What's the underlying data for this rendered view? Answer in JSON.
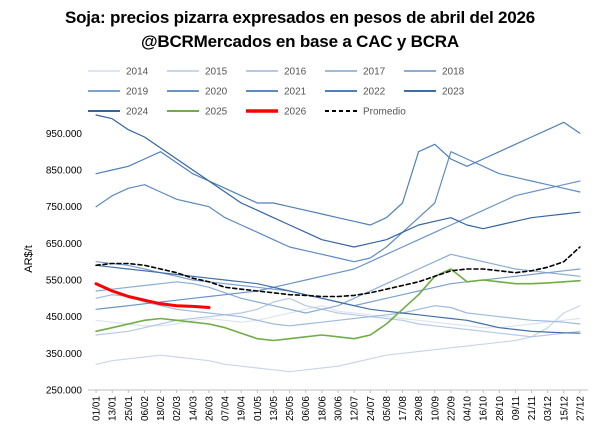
{
  "chart_data": {
    "type": "line",
    "title": "Soja: precios pizarra  expresados en pesos de abril del 2026",
    "subtitle": "@BCRMercados en base a CAC y BCRA",
    "ylabel": "AR$/t",
    "xlabel": "",
    "ylim": [
      250000,
      1000000
    ],
    "yticks": [
      "250.000",
      "350.000",
      "450.000",
      "550.000",
      "650.000",
      "750.000",
      "850.000",
      "950.000"
    ],
    "ytick_values": [
      250000,
      350000,
      450000,
      550000,
      650000,
      750000,
      850000,
      950000
    ],
    "x_ticks": [
      "01/01",
      "13/01",
      "25/01",
      "06/02",
      "18/02",
      "02/03",
      "14/03",
      "26/03",
      "07/04",
      "19/04",
      "01/05",
      "13/05",
      "25/05",
      "06/06",
      "18/06",
      "30/06",
      "12/07",
      "24/07",
      "05/08",
      "17/08",
      "29/08",
      "10/09",
      "22/09",
      "04/10",
      "16/10",
      "28/10",
      "09/11",
      "21/11",
      "03/12",
      "15/12",
      "27/12"
    ],
    "x": [
      "01/01",
      "13/01",
      "25/01",
      "06/02",
      "18/02",
      "02/03",
      "14/03",
      "26/03",
      "07/04",
      "19/04",
      "01/05",
      "13/05",
      "25/05",
      "06/06",
      "18/06",
      "30/06",
      "12/07",
      "24/07",
      "05/08",
      "17/08",
      "29/08",
      "10/09",
      "22/09",
      "04/10",
      "16/10",
      "28/10",
      "09/11",
      "21/11",
      "03/12",
      "15/12",
      "27/12"
    ],
    "grid": false,
    "legend_position": "top",
    "series": [
      {
        "name": "2014",
        "color": "#dce4f0",
        "width": 1.2,
        "values": [
          440000,
          435000,
          430000,
          425000,
          425000,
          430000,
          440000,
          445000,
          440000,
          435000,
          440000,
          450000,
          460000,
          470000,
          480000,
          465000,
          460000,
          455000,
          450000,
          445000,
          440000,
          435000,
          430000,
          425000,
          420000,
          420000,
          425000,
          430000,
          435000,
          440000,
          445000
        ]
      },
      {
        "name": "2015",
        "color": "#c9d7ea",
        "width": 1.2,
        "values": [
          320000,
          330000,
          335000,
          340000,
          345000,
          340000,
          335000,
          330000,
          320000,
          315000,
          310000,
          305000,
          300000,
          305000,
          310000,
          315000,
          325000,
          335000,
          345000,
          350000,
          355000,
          360000,
          365000,
          370000,
          375000,
          380000,
          385000,
          395000,
          420000,
          460000,
          480000
        ]
      },
      {
        "name": "2016",
        "color": "#b5c9e3",
        "width": 1.2,
        "values": [
          400000,
          405000,
          410000,
          420000,
          430000,
          440000,
          445000,
          450000,
          455000,
          460000,
          470000,
          490000,
          500000,
          480000,
          470000,
          460000,
          455000,
          450000,
          445000,
          440000,
          430000,
          425000,
          420000,
          415000,
          410000,
          405000,
          400000,
          395000,
          400000,
          405000,
          410000
        ]
      },
      {
        "name": "2017",
        "color": "#9fbadc",
        "width": 1.2,
        "values": [
          500000,
          510000,
          505000,
          490000,
          480000,
          470000,
          465000,
          460000,
          455000,
          450000,
          440000,
          430000,
          425000,
          430000,
          435000,
          440000,
          445000,
          450000,
          455000,
          460000,
          470000,
          480000,
          475000,
          460000,
          455000,
          450000,
          445000,
          440000,
          438000,
          435000,
          430000
        ]
      },
      {
        "name": "2018",
        "color": "#8aacd5",
        "width": 1.2,
        "values": [
          520000,
          525000,
          530000,
          535000,
          540000,
          545000,
          540000,
          530000,
          515000,
          500000,
          490000,
          480000,
          470000,
          460000,
          470000,
          480000,
          500000,
          520000,
          540000,
          560000,
          580000,
          600000,
          620000,
          610000,
          600000,
          590000,
          580000,
          575000,
          570000,
          565000,
          560000
        ]
      },
      {
        "name": "2019",
        "color": "#7da1ce",
        "width": 1.2,
        "values": [
          600000,
          595000,
          590000,
          580000,
          570000,
          560000,
          550000,
          545000,
          540000,
          535000,
          530000,
          525000,
          520000,
          510000,
          500000,
          490000,
          480000,
          490000,
          500000,
          510000,
          520000,
          530000,
          540000,
          545000,
          550000,
          555000,
          560000,
          565000,
          570000,
          575000,
          580000
        ]
      },
      {
        "name": "2020",
        "color": "#6b94c6",
        "width": 1.2,
        "values": [
          470000,
          475000,
          480000,
          485000,
          490000,
          495000,
          500000,
          505000,
          510000,
          515000,
          520000,
          530000,
          540000,
          550000,
          560000,
          570000,
          580000,
          600000,
          620000,
          640000,
          660000,
          680000,
          700000,
          720000,
          740000,
          760000,
          780000,
          790000,
          800000,
          810000,
          820000
        ]
      },
      {
        "name": "2021",
        "color": "#5d8bc0",
        "width": 1.2,
        "values": [
          750000,
          780000,
          800000,
          810000,
          790000,
          770000,
          760000,
          750000,
          720000,
          700000,
          680000,
          660000,
          640000,
          630000,
          620000,
          610000,
          600000,
          610000,
          640000,
          680000,
          720000,
          760000,
          900000,
          880000,
          860000,
          840000,
          830000,
          820000,
          810000,
          800000,
          790000
        ]
      },
      {
        "name": "2022",
        "color": "#4f80b8",
        "width": 1.2,
        "values": [
          840000,
          850000,
          860000,
          880000,
          900000,
          870000,
          840000,
          820000,
          800000,
          780000,
          760000,
          760000,
          750000,
          740000,
          730000,
          720000,
          710000,
          700000,
          720000,
          760000,
          900000,
          920000,
          880000,
          860000,
          880000,
          900000,
          920000,
          940000,
          960000,
          980000,
          950000
        ]
      },
      {
        "name": "2023",
        "color": "#3f6ea7",
        "width": 1.2,
        "values": [
          590000,
          585000,
          580000,
          575000,
          570000,
          565000,
          560000,
          555000,
          550000,
          545000,
          540000,
          530000,
          520000,
          510000,
          500000,
          490000,
          480000,
          470000,
          465000,
          460000,
          455000,
          450000,
          445000,
          440000,
          430000,
          420000,
          415000,
          410000,
          408000,
          406000,
          405000
        ]
      },
      {
        "name": "2024",
        "color": "#3565a0",
        "width": 1.2,
        "values": [
          1000000,
          990000,
          960000,
          940000,
          910000,
          880000,
          850000,
          820000,
          790000,
          760000,
          740000,
          720000,
          700000,
          680000,
          660000,
          650000,
          640000,
          650000,
          660000,
          680000,
          700000,
          710000,
          720000,
          700000,
          690000,
          700000,
          710000,
          720000,
          725000,
          730000,
          735000
        ]
      },
      {
        "name": "2025",
        "color": "#70ad47",
        "width": 1.6,
        "values": [
          410000,
          420000,
          430000,
          440000,
          445000,
          440000,
          435000,
          430000,
          420000,
          405000,
          390000,
          385000,
          390000,
          395000,
          400000,
          395000,
          390000,
          400000,
          430000,
          470000,
          510000,
          560000,
          580000,
          545000,
          550000,
          545000,
          540000,
          540000,
          542000,
          545000,
          548000
        ]
      },
      {
        "name": "2026",
        "color": "#ff0000",
        "width": 3,
        "values": [
          540000,
          520000,
          505000,
          495000,
          485000,
          480000,
          478000,
          475000,
          null,
          null,
          null,
          null,
          null,
          null,
          null,
          null,
          null,
          null,
          null,
          null,
          null,
          null,
          null,
          null,
          null,
          null,
          null,
          null,
          null,
          null,
          null
        ]
      },
      {
        "name": "Promedio",
        "color": "#000000",
        "width": 1.6,
        "dash": "4,3",
        "values": [
          590000,
          595000,
          595000,
          590000,
          580000,
          570000,
          555000,
          545000,
          530000,
          525000,
          520000,
          515000,
          510000,
          508000,
          505000,
          505000,
          508000,
          515000,
          525000,
          535000,
          545000,
          560000,
          575000,
          580000,
          580000,
          575000,
          570000,
          575000,
          585000,
          600000,
          640000
        ]
      }
    ]
  }
}
